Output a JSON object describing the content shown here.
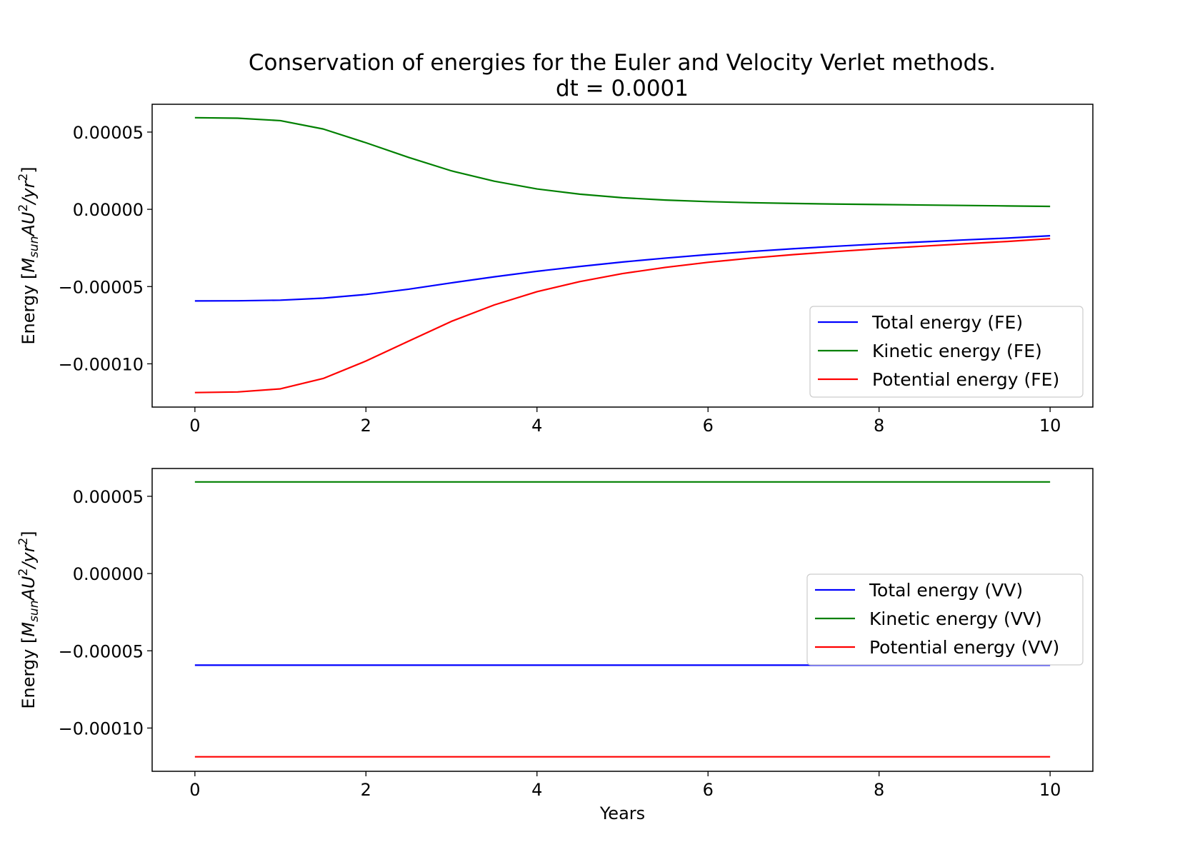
{
  "chart_data": {
    "title": "Conservation of energies for the Euler and Velocity Verlet methods.",
    "subtitle": "dt = 0.0001",
    "panels": [
      {
        "type": "line",
        "ylabel": "Energy [M_sun AU^2/yr^2]",
        "xlabel": "",
        "xlim": [
          -0.5,
          10.5
        ],
        "ylim": [
          -0.000128,
          6.8e-05
        ],
        "xticks": [
          0,
          2,
          4,
          6,
          8,
          10
        ],
        "xtick_labels": [
          "0",
          "2",
          "4",
          "6",
          "8",
          "10"
        ],
        "yticks": [
          5e-05,
          0.0,
          -5e-05,
          -0.0001
        ],
        "ytick_labels": [
          "0.00005",
          "0.00000",
          "−0.00005",
          "−0.00010"
        ],
        "legend_position": "lower-right",
        "grid": false,
        "x": [
          0,
          0.5,
          1,
          1.5,
          2,
          2.5,
          3,
          3.5,
          4,
          4.5,
          5,
          5.5,
          6,
          6.5,
          7,
          7.5,
          8,
          8.5,
          9,
          9.5,
          10
        ],
        "series": [
          {
            "name": "Total energy (FE)",
            "color": "#0000ff",
            "values": [
              -5.93e-05,
              -5.92e-05,
              -5.88e-05,
              -5.75e-05,
              -5.51e-05,
              -5.17e-05,
              -4.76e-05,
              -4.37e-05,
              -4.01e-05,
              -3.7e-05,
              -3.41e-05,
              -3.16e-05,
              -2.93e-05,
              -2.73e-05,
              -2.55e-05,
              -2.39e-05,
              -2.24e-05,
              -2.11e-05,
              -1.98e-05,
              -1.86e-05,
              -1.71e-05
            ]
          },
          {
            "name": "Kinetic energy (FE)",
            "color": "#008000",
            "values": [
              5.93e-05,
              5.9e-05,
              5.74e-05,
              5.2e-05,
              4.31e-05,
              3.36e-05,
              2.49e-05,
              1.82e-05,
              1.32e-05,
              9.8e-06,
              7.5e-06,
              6e-06,
              5e-06,
              4.3e-06,
              3.8e-06,
              3.4e-06,
              3.1e-06,
              2.8e-06,
              2.5e-06,
              2.2e-06,
              1.9e-06
            ]
          },
          {
            "name": "Potential energy (FE)",
            "color": "#ff0000",
            "values": [
              -0.0001186,
              -0.0001182,
              -0.0001162,
              -0.0001095,
              -9.82e-05,
              -8.53e-05,
              -7.25e-05,
              -6.19e-05,
              -5.33e-05,
              -4.68e-05,
              -4.16e-05,
              -3.76e-05,
              -3.43e-05,
              -3.16e-05,
              -2.93e-05,
              -2.73e-05,
              -2.55e-05,
              -2.39e-05,
              -2.23e-05,
              -2.08e-05,
              -1.9e-05
            ]
          }
        ]
      },
      {
        "type": "line",
        "ylabel": "Energy [M_sun AU^2/yr^2]",
        "xlabel": "Years",
        "xlim": [
          -0.5,
          10.5
        ],
        "ylim": [
          -0.000128,
          6.8e-05
        ],
        "xticks": [
          0,
          2,
          4,
          6,
          8,
          10
        ],
        "xtick_labels": [
          "0",
          "2",
          "4",
          "6",
          "8",
          "10"
        ],
        "yticks": [
          5e-05,
          0.0,
          -5e-05,
          -0.0001
        ],
        "ytick_labels": [
          "0.00005",
          "0.00000",
          "−0.00005",
          "−0.00010"
        ],
        "legend_position": "center-right",
        "grid": false,
        "x": [
          0,
          10
        ],
        "series": [
          {
            "name": "Total energy (VV)",
            "color": "#0000ff",
            "values": [
              -5.93e-05,
              -5.93e-05
            ]
          },
          {
            "name": "Kinetic energy (VV)",
            "color": "#008000",
            "values": [
              5.93e-05,
              5.93e-05
            ]
          },
          {
            "name": "Potential energy (VV)",
            "color": "#ff0000",
            "values": [
              -0.0001186,
              -0.0001186
            ]
          }
        ]
      }
    ]
  }
}
